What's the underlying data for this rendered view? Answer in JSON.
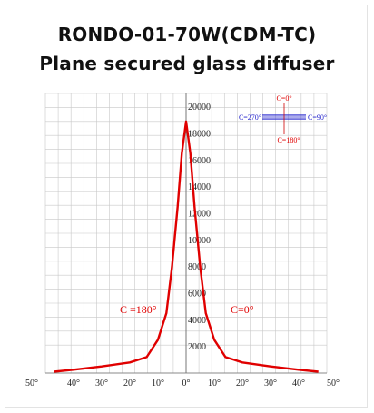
{
  "header": {
    "title_line1": "RONDO-01-70W(CDM-TC)",
    "title_line2": "Plane secured glass diffuser"
  },
  "chart_data": {
    "type": "line",
    "title": "",
    "x_tick_labels": [
      "50°",
      "40°",
      "30°",
      "20°",
      "10°",
      "0°",
      "10°",
      "20°",
      "30°",
      "40°",
      "50°"
    ],
    "y_ticks": [
      2000,
      4000,
      6000,
      8000,
      10000,
      12000,
      14000,
      16000,
      18000,
      20000
    ],
    "ylim": [
      0,
      21000
    ],
    "xlim": [
      -50,
      50
    ],
    "grid": true,
    "curve_label_left": "C =180°",
    "curve_label_right": "C=0°",
    "series": [
      {
        "color": "#e00000",
        "x": [
          -47,
          -40,
          -30,
          -20,
          -14,
          -10,
          -7,
          -5,
          -3,
          -1.5,
          0,
          1.5,
          3,
          5,
          7,
          10,
          14,
          20,
          30,
          40,
          47
        ],
        "y": [
          100,
          250,
          500,
          800,
          1200,
          2500,
          4500,
          8000,
          12500,
          16500,
          18900,
          16500,
          12500,
          8000,
          4500,
          2500,
          1200,
          800,
          500,
          250,
          100
        ]
      }
    ],
    "legend_diagram": {
      "top": "C=0°",
      "left": "C=270°",
      "right": "C=90°",
      "bottom": "C=180°"
    }
  },
  "colors": {
    "curve": "#e00000",
    "grid": "#c8c8c8",
    "legend_text": "#2222cc",
    "legend_lines": "#2222cc"
  }
}
